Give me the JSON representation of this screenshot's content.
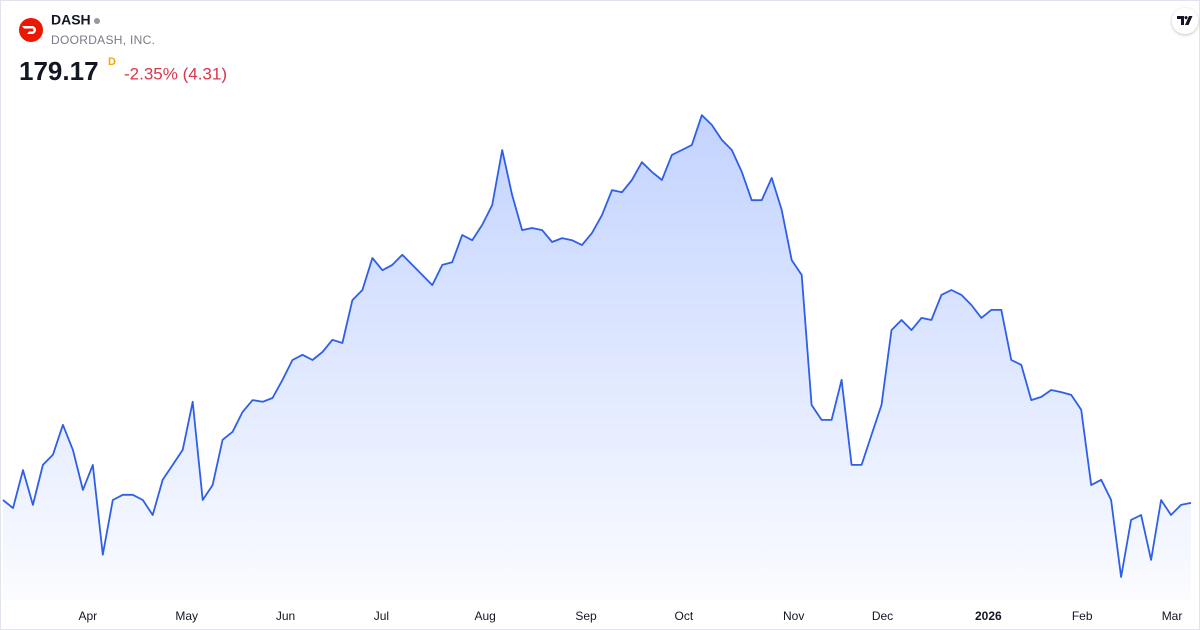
{
  "chart_data": {
    "type": "area",
    "symbol": "DASH",
    "company": "DOORDASH, INC.",
    "price": 179.17,
    "interval": "D",
    "change": "-2.35% (4.31)",
    "color": "#2f5fe8",
    "values": [
      180.0,
      177.7,
      188.6,
      178.6,
      190.1,
      193.0,
      201.6,
      194.4,
      182.9,
      190.1,
      164.3,
      180.0,
      181.5,
      181.5,
      180.0,
      175.7,
      185.8,
      190.1,
      194.4,
      208.2,
      180.0,
      184.3,
      197.3,
      199.6,
      205.3,
      208.7,
      208.2,
      209.3,
      214.5,
      220.2,
      221.7,
      220.2,
      222.5,
      226.0,
      225.1,
      237.4,
      240.3,
      249.5,
      246.0,
      247.5,
      250.4,
      247.5,
      244.6,
      241.7,
      247.5,
      248.3,
      256.1,
      254.6,
      259.0,
      264.7,
      280.5,
      267.6,
      257.5,
      258.1,
      257.5,
      254.1,
      255.2,
      254.6,
      253.2,
      256.7,
      261.8,
      269.0,
      268.4,
      271.9,
      277.0,
      274.2,
      271.9,
      279.1,
      280.5,
      281.9,
      290.5,
      287.7,
      283.4,
      280.5,
      274.2,
      266.1,
      266.1,
      272.5,
      263.3,
      248.9,
      244.6,
      207.3,
      203.0,
      203.0,
      214.5,
      190.1,
      190.1,
      198.7,
      207.3,
      228.8,
      231.7,
      228.8,
      232.3,
      231.7,
      238.9,
      240.3,
      238.9,
      236.0,
      232.3,
      234.6,
      234.6,
      220.2,
      218.8,
      208.7,
      209.6,
      211.6,
      211.0,
      210.2,
      205.9,
      184.3,
      185.8,
      180.0,
      157.9,
      174.3,
      175.7,
      162.8,
      180.0,
      175.7,
      178.6,
      179.17
    ],
    "xlim": [
      0,
      119
    ],
    "ylim": [
      151.3,
      300.6
    ],
    "xticks": [
      {
        "value": 8.5,
        "label": "Apr"
      },
      {
        "value": 18.4,
        "label": "May"
      },
      {
        "value": 28.3,
        "label": "Jun"
      },
      {
        "value": 37.9,
        "label": "Jul"
      },
      {
        "value": 48.3,
        "label": "Aug"
      },
      {
        "value": 58.4,
        "label": "Sep"
      },
      {
        "value": 68.2,
        "label": "Oct"
      },
      {
        "value": 79.2,
        "label": "Nov"
      },
      {
        "value": 88.1,
        "label": "Dec"
      },
      {
        "value": 98.7,
        "label": "2026",
        "emphasis": true
      },
      {
        "value": 108.1,
        "label": "Feb"
      },
      {
        "value": 117.1,
        "label": "Mar"
      }
    ]
  }
}
